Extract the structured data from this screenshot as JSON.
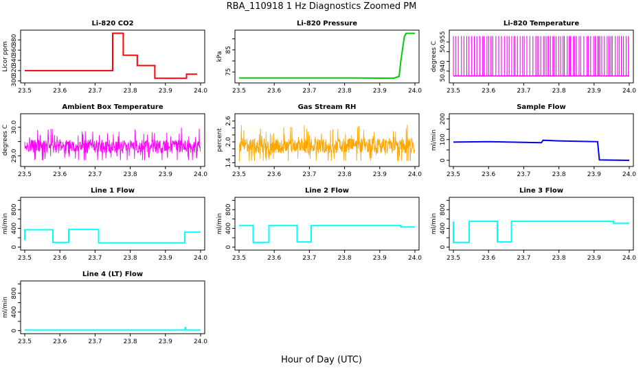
{
  "figure": {
    "title": "RBA_110918  1 Hz Diagnostics Zoomed PM",
    "xlabel": "Hour of Day (UTC)"
  },
  "chart_data": [
    {
      "type": "line",
      "title": "Li-820 CO2",
      "ylabel": "Licor ppm",
      "color": "#ff0000",
      "xlim": [
        23.5,
        24.0
      ],
      "ylim": [
        300,
        395
      ],
      "yticks": [
        300,
        320,
        340,
        360,
        380
      ],
      "xticks": [
        23.5,
        23.6,
        23.7,
        23.8,
        23.9,
        24.0
      ],
      "series": [
        {
          "x": [
            23.5,
            23.58,
            23.665,
            23.75,
            23.75,
            23.78,
            23.78,
            23.82,
            23.82,
            23.84,
            23.84,
            23.87,
            23.87,
            23.96,
            23.96,
            23.99
          ],
          "values": [
            320,
            320,
            320,
            320,
            393,
            393,
            350,
            350,
            330,
            330,
            330,
            330,
            305,
            305,
            313,
            313
          ]
        }
      ]
    },
    {
      "type": "line",
      "title": "Li-820 Pressure",
      "ylabel": "kPa",
      "color": "#00cc00",
      "xlim": [
        23.5,
        24.0
      ],
      "ylim": [
        71,
        93
      ],
      "yticks": [
        75,
        80,
        85,
        90
      ],
      "ytick_labels": [
        "75",
        "",
        "85",
        ""
      ],
      "xticks": [
        23.5,
        23.6,
        23.7,
        23.8,
        23.9,
        24.0
      ],
      "series": [
        {
          "x": [
            23.5,
            23.83,
            23.94,
            23.955,
            23.96,
            23.97,
            23.975,
            24.0
          ],
          "values": [
            72.3,
            72.3,
            72.2,
            73,
            80,
            91,
            92.5,
            92.5
          ]
        }
      ]
    },
    {
      "type": "line",
      "title": "Li-820 Temperature",
      "ylabel": "degrees C",
      "color": "#ff00ff",
      "xlim": [
        23.5,
        24.0
      ],
      "ylim": [
        50.935,
        50.96
      ],
      "yticks": [
        50.94,
        50.945,
        50.95,
        50.955
      ],
      "ytick_labels": [
        "50.940",
        "",
        "",
        "50.955"
      ],
      "xticks": [
        23.5,
        23.6,
        23.7,
        23.8,
        23.9,
        24.0
      ],
      "series": [
        {
          "x": [
            23.5,
            24.0
          ],
          "values": [
            50.9375,
            50.958
          ]
        }
      ]
    },
    {
      "type": "line",
      "title": "Ambient Box Temperature",
      "ylabel": "degrees C",
      "color": "#ff00ff",
      "xlim": [
        23.5,
        24.0
      ],
      "ylim": [
        28.7,
        30.4
      ],
      "yticks": [
        29.0,
        29.5,
        30.0
      ],
      "ytick_labels": [
        "29.0",
        "",
        "30.0"
      ],
      "xticks": [
        23.5,
        23.6,
        23.7,
        23.8,
        23.9,
        24.0
      ],
      "series": [
        {
          "x": [
            23.5,
            24.0
          ],
          "values": [
            28.85,
            30.2
          ]
        }
      ]
    },
    {
      "type": "scatter",
      "title": "Gas Stream RH",
      "ylabel": "percent",
      "color": "#ffa500",
      "xlim": [
        23.5,
        24.0
      ],
      "ylim": [
        1.35,
        2.75
      ],
      "yticks": [
        1.4,
        1.6,
        1.8,
        2.0,
        2.2,
        2.4,
        2.6
      ],
      "ytick_labels": [
        "1.4",
        "",
        "",
        "2.0",
        "",
        "",
        "2.6"
      ],
      "xticks": [
        23.5,
        23.6,
        23.7,
        23.8,
        23.9,
        24.0
      ],
      "series": [
        {
          "x": [
            23.5,
            24.0
          ],
          "values": [
            1.45,
            2.7
          ]
        }
      ]
    },
    {
      "type": "line",
      "title": "Sample Flow",
      "ylabel": "ml/min",
      "color": "#0000ff",
      "xlim": [
        23.5,
        24.0
      ],
      "ylim": [
        -20,
        215
      ],
      "yticks": [
        0,
        50,
        100,
        150,
        200
      ],
      "ytick_labels": [
        "0",
        "",
        "100",
        "",
        "200"
      ],
      "xticks": [
        23.5,
        23.6,
        23.7,
        23.8,
        23.9,
        24.0
      ],
      "series": [
        {
          "x": [
            23.5,
            23.6,
            23.7,
            23.75,
            23.755,
            23.8,
            23.91,
            23.915,
            24.0
          ],
          "values": [
            88,
            90,
            87,
            85,
            97,
            94,
            90,
            2,
            0
          ]
        }
      ]
    },
    {
      "type": "line",
      "title": "Line 1 Flow",
      "ylabel": "ml/min",
      "color": "#00ffff",
      "xlim": [
        23.5,
        24.0
      ],
      "ylim": [
        -20,
        1020
      ],
      "yticks": [
        0,
        200,
        400,
        600,
        800,
        1000
      ],
      "ytick_labels": [
        "0",
        "",
        "400",
        "",
        "800",
        ""
      ],
      "xticks": [
        23.5,
        23.6,
        23.7,
        23.8,
        23.9,
        24.0
      ],
      "series": [
        {
          "x": [
            23.5,
            23.5,
            23.58,
            23.58,
            23.625,
            23.625,
            23.71,
            23.71,
            23.955,
            23.955,
            24.0
          ],
          "values": [
            150,
            370,
            370,
            100,
            100,
            380,
            380,
            90,
            90,
            320,
            320
          ]
        }
      ]
    },
    {
      "type": "line",
      "title": "Line 2 Flow",
      "ylabel": "ml/min",
      "color": "#00ffff",
      "xlim": [
        23.5,
        24.0
      ],
      "ylim": [
        -20,
        1020
      ],
      "yticks": [
        0,
        200,
        400,
        600,
        800,
        1000
      ],
      "ytick_labels": [
        "0",
        "",
        "400",
        "",
        "800",
        ""
      ],
      "xticks": [
        23.5,
        23.6,
        23.7,
        23.8,
        23.9,
        24.0
      ],
      "series": [
        {
          "x": [
            23.5,
            23.54,
            23.54,
            23.585,
            23.585,
            23.665,
            23.665,
            23.705,
            23.705,
            23.96,
            23.96,
            24.0
          ],
          "values": [
            460,
            460,
            100,
            100,
            460,
            460,
            110,
            110,
            460,
            460,
            430,
            430
          ]
        }
      ]
    },
    {
      "type": "line",
      "title": "Line 3 Flow",
      "ylabel": "ml/min",
      "color": "#00ffff",
      "xlim": [
        23.5,
        24.0
      ],
      "ylim": [
        -20,
        1020
      ],
      "yticks": [
        0,
        200,
        400,
        600,
        800,
        1000
      ],
      "ytick_labels": [
        "0",
        "",
        "400",
        "",
        "800",
        ""
      ],
      "xticks": [
        23.5,
        23.6,
        23.7,
        23.8,
        23.9,
        24.0
      ],
      "series": [
        {
          "x": [
            23.5,
            23.5,
            23.505,
            23.545,
            23.545,
            23.625,
            23.625,
            23.665,
            23.665,
            23.955,
            23.955,
            24.0
          ],
          "values": [
            550,
            100,
            100,
            100,
            550,
            550,
            110,
            110,
            550,
            550,
            510,
            510
          ]
        }
      ]
    },
    {
      "type": "line",
      "title": "Line 4 (LT) Flow",
      "ylabel": "ml/min",
      "color": "#00ffff",
      "xlim": [
        23.5,
        24.0
      ],
      "ylim": [
        -20,
        1020
      ],
      "yticks": [
        0,
        200,
        400,
        600,
        800,
        1000
      ],
      "ytick_labels": [
        "0",
        "",
        "400",
        "",
        "800",
        ""
      ],
      "xticks": [
        23.5,
        23.6,
        23.7,
        23.8,
        23.9,
        24.0
      ],
      "series": [
        {
          "x": [
            23.5,
            23.955,
            23.957,
            23.958,
            23.96,
            24.0
          ],
          "values": [
            15,
            15,
            80,
            20,
            15,
            15
          ]
        }
      ]
    }
  ]
}
